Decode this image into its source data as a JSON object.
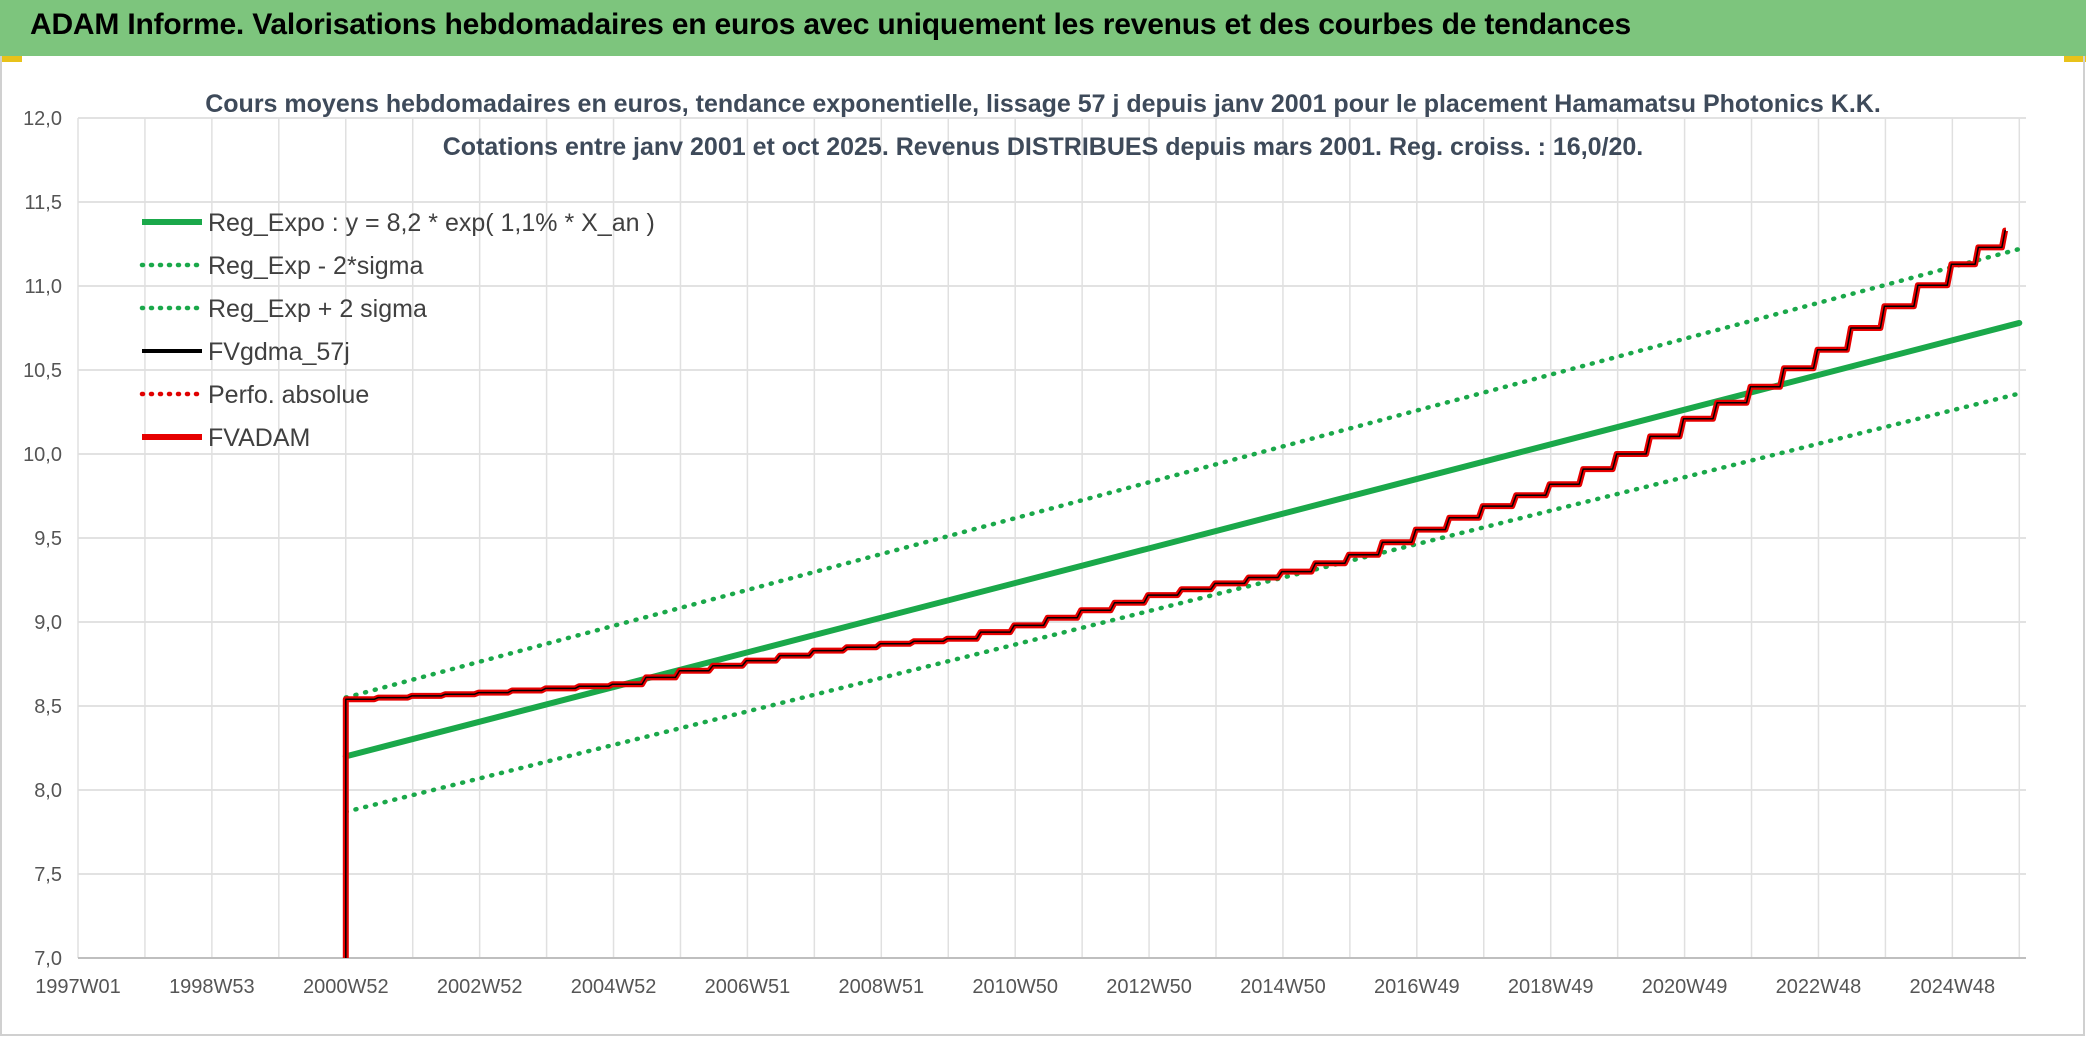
{
  "header": {
    "title": "ADAM Informe. Valorisations hebdomadaires en euros avec uniquement les revenus et des courbes de tendances"
  },
  "colors": {
    "banner": "#7dc57d",
    "trend": "#1aa84a",
    "bands": "#1aa84a",
    "fvgdma": "#000000",
    "perfo": "#e00000",
    "fvadam": "#e60000"
  },
  "chart_data": {
    "type": "line",
    "title_line1": "Cours moyens hebdomadaires en euros, tendance exponentielle, lissage 57 j depuis janv 2001 pour le placement Hamamatsu Photonics K.K.",
    "title_line2": "Cotations entre janv 2001 et oct 2025. Revenus DISTRIBUES depuis mars 2001. Reg. croiss. : 16,0/20.",
    "xlabel": "",
    "ylabel": "",
    "x_tick_labels": [
      "1997W01",
      "1998W53",
      "2000W52",
      "2002W52",
      "2004W52",
      "2006W51",
      "2008W51",
      "2010W50",
      "2012W50",
      "2014W50",
      "2016W49",
      "2018W49",
      "2020W49",
      "2022W48",
      "2024W48"
    ],
    "x_range_years": [
      1997.0,
      2026.0
    ],
    "ylim": [
      7.0,
      12.0
    ],
    "y_ticks": [
      "7,0",
      "7,5",
      "8,0",
      "8,5",
      "9,0",
      "9,5",
      "10,0",
      "10,5",
      "11,0",
      "11,5",
      "12,0"
    ],
    "grid": true,
    "legend_position": "top-left",
    "legend": [
      {
        "name": "Reg_Expo : y = 8,2 * exp( 1,1% *  X_an )",
        "style": "solid-thick",
        "color": "#1aa84a"
      },
      {
        "name": "Reg_Exp - 2*sigma",
        "style": "dotted",
        "color": "#1aa84a"
      },
      {
        "name": "Reg_Exp + 2 sigma",
        "style": "dotted",
        "color": "#1aa84a"
      },
      {
        "name": "FVgdma_57j",
        "style": "solid",
        "color": "#000000"
      },
      {
        "name": "Perfo. absolue",
        "style": "dotted",
        "color": "#e00000"
      },
      {
        "name": "FVADAM",
        "style": "solid-thick",
        "color": "#e60000"
      }
    ],
    "series": [
      {
        "name": "Reg_Expo : y = 8,2 * exp( 1,1% *  X_an )",
        "x": [
          2001.0,
          2026.0
        ],
        "values": [
          8.2,
          10.78
        ]
      },
      {
        "name": "Reg_Exp - 2*sigma",
        "x": [
          2001.0,
          2026.0
        ],
        "values": [
          7.87,
          10.36
        ]
      },
      {
        "name": "Reg_Exp + 2 sigma",
        "x": [
          2001.0,
          2026.0
        ],
        "values": [
          8.55,
          11.22
        ]
      },
      {
        "name": "FVADAM",
        "x": [
          2001.0,
          2001.0,
          2003.0,
          2005.0,
          2006.0,
          2007.0,
          2008.0,
          2009.0,
          2010.0,
          2011.0,
          2012.0,
          2013.0,
          2014.0,
          2015.0,
          2016.0,
          2017.0,
          2018.0,
          2019.0,
          2020.0,
          2021.0,
          2022.0,
          2023.0,
          2024.0,
          2025.0,
          2025.8
        ],
        "values": [
          7.0,
          8.54,
          8.58,
          8.63,
          8.71,
          8.77,
          8.83,
          8.87,
          8.9,
          8.98,
          9.07,
          9.16,
          9.23,
          9.3,
          9.4,
          9.55,
          9.69,
          9.82,
          10.0,
          10.21,
          10.4,
          10.62,
          10.88,
          11.13,
          11.33
        ]
      }
    ]
  }
}
